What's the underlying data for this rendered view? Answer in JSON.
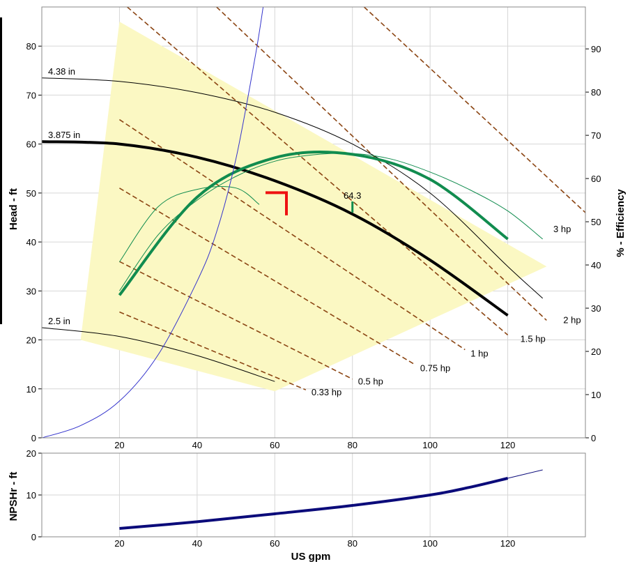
{
  "chart_data": [
    {
      "type": "line",
      "title": "",
      "xlabel": "",
      "ylabel": "Head - ft",
      "y2label": "% - Efficiency",
      "xlim": [
        0,
        140
      ],
      "ylim": [
        0,
        88
      ],
      "y2lim": [
        0,
        99.7
      ],
      "xticks": [
        20,
        40,
        60,
        80,
        100,
        120
      ],
      "yticks": [
        0,
        10,
        20,
        30,
        40,
        50,
        60,
        70,
        80
      ],
      "y2ticks": [
        0,
        10,
        20,
        30,
        40,
        50,
        60,
        70,
        80,
        90
      ],
      "grid": true,
      "colors": {
        "region": "#fbf8c3",
        "head": "#000000",
        "efficiency": "#118c4f",
        "power": "#8b4513",
        "system": "#3333cc",
        "marker": "#ee1111"
      },
      "preferred_region": [
        [
          20,
          85
        ],
        [
          10,
          20
        ],
        [
          60,
          9.5
        ],
        [
          130,
          35
        ]
      ],
      "head_curves": [
        {
          "name": "4.38 in",
          "points": [
            [
              0,
              73.5
            ],
            [
              20,
              72.8
            ],
            [
              40,
              70.5
            ],
            [
              60,
              66.5
            ],
            [
              80,
              60
            ],
            [
              100,
              50
            ],
            [
              120,
              35
            ],
            [
              129,
              28.5
            ]
          ]
        },
        {
          "name": "3.875 in",
          "points": [
            [
              0,
              60.5
            ],
            [
              20,
              60
            ],
            [
              40,
              57.3
            ],
            [
              60,
              52.5
            ],
            [
              80,
              45.7
            ],
            [
              100,
              36.3
            ],
            [
              120,
              25
            ]
          ]
        },
        {
          "name": "2.5 in",
          "points": [
            [
              0,
              22.5
            ],
            [
              20,
              20.7
            ],
            [
              40,
              16.8
            ],
            [
              60,
              11.5
            ]
          ]
        }
      ],
      "efficiency_curves": [
        {
          "name": "",
          "points": [
            [
              20,
              33
            ],
            [
              40,
              55.7
            ],
            [
              60,
              64.8
            ],
            [
              80,
              65.6
            ],
            [
              100,
              59.8
            ],
            [
              120,
              46
            ]
          ]
        },
        {
          "name": "",
          "points": [
            [
              20,
              34
            ],
            [
              30,
              47
            ],
            [
              40,
              55
            ],
            [
              50,
              60.5
            ],
            [
              60,
              64
            ],
            [
              70,
              65.5
            ],
            [
              80,
              65.8
            ],
            [
              90,
              64.5
            ],
            [
              100,
              61.5
            ],
            [
              110,
              57.5
            ],
            [
              120,
              52.5
            ],
            [
              129,
              46
            ]
          ]
        },
        {
          "name": "",
          "points": [
            [
              20,
              40.7
            ],
            [
              30,
              53.5
            ],
            [
              40,
              57.5
            ],
            [
              50,
              57.8
            ],
            [
              56,
              54
            ]
          ]
        }
      ],
      "power_lines": [
        {
          "label": "0.33 hp",
          "points": [
            [
              20,
              25.7
            ],
            [
              68,
              9.8
            ]
          ]
        },
        {
          "label": "0.5 hp",
          "points": [
            [
              20,
              36
            ],
            [
              80,
              12
            ]
          ]
        },
        {
          "label": "0.75 hp",
          "points": [
            [
              20,
              51
            ],
            [
              96,
              15
            ]
          ]
        },
        {
          "label": "1 hp",
          "points": [
            [
              20,
              65
            ],
            [
              109,
              18
            ]
          ]
        },
        {
          "label": "1.5 hp",
          "points": [
            [
              22,
              88
            ],
            [
              120,
              21
            ]
          ]
        },
        {
          "label": "2 hp",
          "points": [
            [
              45,
              88
            ],
            [
              130,
              24
            ]
          ]
        },
        {
          "label": "3 hp",
          "points": [
            [
              83,
              88
            ],
            [
              140,
              46
            ]
          ]
        }
      ],
      "system_curve": {
        "points": [
          [
            0,
            0
          ],
          [
            10,
            2.5
          ],
          [
            20,
            7.5
          ],
          [
            30,
            17
          ],
          [
            40,
            32
          ],
          [
            45,
            42
          ],
          [
            50,
            57
          ],
          [
            55,
            78
          ],
          [
            57,
            88
          ]
        ]
      },
      "bep_label": {
        "text": "64.3",
        "x": 80,
        "y": 46
      },
      "operating_point": {
        "x": 63,
        "y": 50
      }
    },
    {
      "type": "line",
      "title": "",
      "xlabel": "US gpm",
      "ylabel": "NPSHr - ft",
      "xlim": [
        0,
        140
      ],
      "ylim": [
        0,
        20
      ],
      "xticks": [
        20,
        40,
        60,
        80,
        100,
        120
      ],
      "yticks": [
        0,
        10,
        20
      ],
      "grid": true,
      "series": [
        {
          "name": "",
          "thick": true,
          "points": [
            [
              20,
              2
            ],
            [
              40,
              3.6
            ],
            [
              60,
              5.5
            ],
            [
              80,
              7.5
            ],
            [
              100,
              10
            ],
            [
              110,
              11.8
            ],
            [
              120,
              14
            ]
          ]
        },
        {
          "name": "",
          "thick": false,
          "points": [
            [
              120,
              14
            ],
            [
              129,
              16
            ]
          ]
        }
      ]
    }
  ]
}
